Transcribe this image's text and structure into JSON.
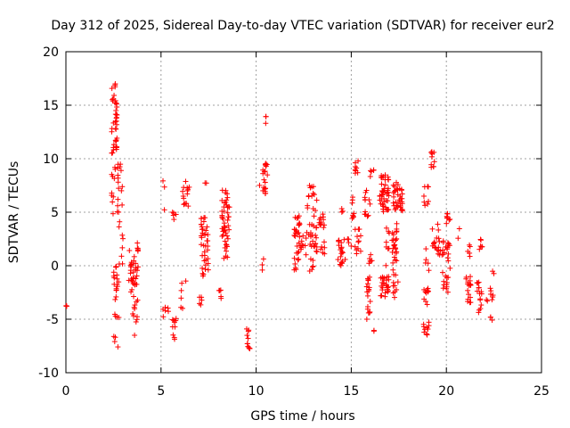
{
  "chart_data": {
    "type": "scatter",
    "title": "Day 312 of 2025, Sidereal Day-to-day VTEC variation (SDTVAR) for receiver eur2",
    "xlabel": "GPS time / hours",
    "ylabel": "SDTVAR / TECUs",
    "xlim": [
      0,
      25
    ],
    "ylim": [
      -10,
      20
    ],
    "xticks": [
      0,
      5,
      10,
      15,
      20,
      25
    ],
    "yticks": [
      -10,
      -5,
      0,
      5,
      10,
      15,
      20
    ],
    "grid": true,
    "marker": "+",
    "marker_color": "#ff0000",
    "series": [
      {
        "name": "eur2",
        "clusters": [
          {
            "x0": 0.0,
            "x1": 0.05,
            "y0": -3.8,
            "y1": -3.0,
            "n": 3
          },
          {
            "x0": 2.4,
            "x1": 2.7,
            "y0": 10.5,
            "y1": 17.5,
            "n": 40
          },
          {
            "x0": 2.4,
            "x1": 2.6,
            "y0": 4.5,
            "y1": 9.5,
            "n": 10
          },
          {
            "x0": 2.5,
            "x1": 2.8,
            "y0": -7.8,
            "y1": 0.5,
            "n": 25
          },
          {
            "x0": 2.7,
            "x1": 3.0,
            "y0": 3.5,
            "y1": 9.5,
            "n": 18
          },
          {
            "x0": 2.8,
            "x1": 3.0,
            "y0": -1.0,
            "y1": 3.0,
            "n": 6
          },
          {
            "x0": 3.3,
            "x1": 3.8,
            "y0": -1.5,
            "y1": 1.5,
            "n": 25
          },
          {
            "x0": 3.4,
            "x1": 3.8,
            "y0": -5.5,
            "y1": -1.5,
            "n": 18
          },
          {
            "x0": 3.7,
            "x1": 3.8,
            "y0": 1.0,
            "y1": 2.5,
            "n": 4
          },
          {
            "x0": 3.6,
            "x1": 3.7,
            "y0": -6.5,
            "y1": -6.5,
            "n": 1
          },
          {
            "x0": 5.0,
            "x1": 5.2,
            "y0": 4.5,
            "y1": 8.2,
            "n": 3
          },
          {
            "x0": 5.1,
            "x1": 5.4,
            "y0": -4.8,
            "y1": -3.8,
            "n": 6
          },
          {
            "x0": 5.6,
            "x1": 5.8,
            "y0": 4.2,
            "y1": 5.0,
            "n": 5
          },
          {
            "x0": 5.6,
            "x1": 5.8,
            "y0": -7.0,
            "y1": -4.5,
            "n": 10
          },
          {
            "x0": 6.0,
            "x1": 6.5,
            "y0": 5.5,
            "y1": 8.0,
            "n": 15
          },
          {
            "x0": 6.0,
            "x1": 6.2,
            "y0": -4.0,
            "y1": -1.5,
            "n": 5
          },
          {
            "x0": 6.3,
            "x1": 6.4,
            "y0": -1.5,
            "y1": -1.2,
            "n": 1
          },
          {
            "x0": 7.0,
            "x1": 7.2,
            "y0": 3.0,
            "y1": 4.5,
            "n": 4
          },
          {
            "x0": 7.0,
            "x1": 7.2,
            "y0": -4.0,
            "y1": -2.5,
            "n": 5
          },
          {
            "x0": 7.1,
            "x1": 7.5,
            "y0": -1.0,
            "y1": 4.5,
            "n": 35
          },
          {
            "x0": 7.3,
            "x1": 7.4,
            "y0": 7.7,
            "y1": 8.0,
            "n": 2
          },
          {
            "x0": 8.0,
            "x1": 8.2,
            "y0": -3.3,
            "y1": -2.0,
            "n": 5
          },
          {
            "x0": 8.2,
            "x1": 8.6,
            "y0": 2.0,
            "y1": 7.2,
            "n": 40
          },
          {
            "x0": 8.3,
            "x1": 8.5,
            "y0": 0.0,
            "y1": 2.0,
            "n": 8
          },
          {
            "x0": 9.5,
            "x1": 9.7,
            "y0": -7.8,
            "y1": -5.8,
            "n": 12
          },
          {
            "x0": 10.0,
            "x1": 10.2,
            "y0": 7.5,
            "y1": 7.7,
            "n": 1
          },
          {
            "x0": 10.3,
            "x1": 10.6,
            "y0": 6.5,
            "y1": 9.8,
            "n": 20
          },
          {
            "x0": 10.5,
            "x1": 10.6,
            "y0": 13.2,
            "y1": 14.0,
            "n": 3
          },
          {
            "x0": 10.2,
            "x1": 10.4,
            "y0": -0.5,
            "y1": 2.0,
            "n": 3
          },
          {
            "x0": 12.0,
            "x1": 12.3,
            "y0": -0.8,
            "y1": 5.0,
            "n": 30
          },
          {
            "x0": 12.3,
            "x1": 12.6,
            "y0": 1.5,
            "y1": 2.8,
            "n": 8
          },
          {
            "x0": 12.6,
            "x1": 13.2,
            "y0": 1.0,
            "y1": 7.5,
            "n": 40
          },
          {
            "x0": 12.8,
            "x1": 13.0,
            "y0": -0.5,
            "y1": 1.0,
            "n": 6
          },
          {
            "x0": 13.3,
            "x1": 13.6,
            "y0": 3.2,
            "y1": 5.0,
            "n": 12
          },
          {
            "x0": 13.3,
            "x1": 13.6,
            "y0": 1.0,
            "y1": 2.5,
            "n": 6
          },
          {
            "x0": 14.3,
            "x1": 14.7,
            "y0": 0.0,
            "y1": 2.5,
            "n": 20
          },
          {
            "x0": 14.5,
            "x1": 14.6,
            "y0": 4.5,
            "y1": 5.5,
            "n": 3
          },
          {
            "x0": 14.8,
            "x1": 15.0,
            "y0": 1.8,
            "y1": 2.5,
            "n": 4
          },
          {
            "x0": 15.0,
            "x1": 15.2,
            "y0": 4.0,
            "y1": 6.5,
            "n": 8
          },
          {
            "x0": 15.2,
            "x1": 15.4,
            "y0": 8.5,
            "y1": 10.0,
            "n": 8
          },
          {
            "x0": 15.2,
            "x1": 15.5,
            "y0": 1.0,
            "y1": 3.5,
            "n": 12
          },
          {
            "x0": 15.7,
            "x1": 16.0,
            "y0": 4.5,
            "y1": 7.5,
            "n": 12
          },
          {
            "x0": 15.8,
            "x1": 16.0,
            "y0": -5.5,
            "y1": -1.0,
            "n": 18
          },
          {
            "x0": 15.9,
            "x1": 16.1,
            "y0": -0.5,
            "y1": 1.5,
            "n": 6
          },
          {
            "x0": 16.1,
            "x1": 16.2,
            "y0": -6.2,
            "y1": -5.8,
            "n": 2
          },
          {
            "x0": 16.0,
            "x1": 16.3,
            "y0": 8.0,
            "y1": 9.3,
            "n": 5
          },
          {
            "x0": 16.5,
            "x1": 17.0,
            "y0": 5.0,
            "y1": 8.5,
            "n": 45
          },
          {
            "x0": 16.5,
            "x1": 17.0,
            "y0": -3.0,
            "y1": -1.0,
            "n": 25
          },
          {
            "x0": 16.8,
            "x1": 17.0,
            "y0": 0.0,
            "y1": 4.0,
            "n": 8
          },
          {
            "x0": 17.1,
            "x1": 17.4,
            "y0": -0.5,
            "y1": 4.0,
            "n": 25
          },
          {
            "x0": 17.2,
            "x1": 17.7,
            "y0": 5.0,
            "y1": 7.8,
            "n": 35
          },
          {
            "x0": 17.2,
            "x1": 17.5,
            "y0": -3.0,
            "y1": -0.5,
            "n": 10
          },
          {
            "x0": 18.8,
            "x1": 19.1,
            "y0": -6.5,
            "y1": -2.0,
            "n": 20
          },
          {
            "x0": 18.8,
            "x1": 19.1,
            "y0": 5.5,
            "y1": 7.5,
            "n": 8
          },
          {
            "x0": 18.9,
            "x1": 19.1,
            "y0": -0.5,
            "y1": 2.0,
            "n": 5
          },
          {
            "x0": 19.2,
            "x1": 19.4,
            "y0": 8.8,
            "y1": 10.7,
            "n": 10
          },
          {
            "x0": 19.2,
            "x1": 19.6,
            "y0": 1.0,
            "y1": 4.0,
            "n": 15
          },
          {
            "x0": 19.6,
            "x1": 20.0,
            "y0": 1.0,
            "y1": 2.5,
            "n": 10
          },
          {
            "x0": 19.8,
            "x1": 20.1,
            "y0": -2.5,
            "y1": -0.5,
            "n": 10
          },
          {
            "x0": 20.0,
            "x1": 20.2,
            "y0": 3.8,
            "y1": 5.0,
            "n": 8
          },
          {
            "x0": 20.0,
            "x1": 20.3,
            "y0": -2.2,
            "y1": 2.2,
            "n": 12
          },
          {
            "x0": 20.6,
            "x1": 20.7,
            "y0": 2.5,
            "y1": 3.5,
            "n": 2
          },
          {
            "x0": 21.0,
            "x1": 21.3,
            "y0": -3.5,
            "y1": -1.0,
            "n": 18
          },
          {
            "x0": 21.1,
            "x1": 21.3,
            "y0": 0.8,
            "y1": 2.0,
            "n": 5
          },
          {
            "x0": 21.6,
            "x1": 21.9,
            "y0": -4.5,
            "y1": -1.5,
            "n": 15
          },
          {
            "x0": 21.7,
            "x1": 21.9,
            "y0": 1.0,
            "y1": 2.5,
            "n": 6
          },
          {
            "x0": 22.1,
            "x1": 22.2,
            "y0": -3.5,
            "y1": -2.8,
            "n": 2
          },
          {
            "x0": 22.3,
            "x1": 22.5,
            "y0": -5.2,
            "y1": -4.8,
            "n": 3
          },
          {
            "x0": 22.3,
            "x1": 22.5,
            "y0": -3.2,
            "y1": -2.0,
            "n": 6
          },
          {
            "x0": 22.3,
            "x1": 22.5,
            "y0": -0.8,
            "y1": -0.5,
            "n": 2
          }
        ]
      }
    ]
  }
}
